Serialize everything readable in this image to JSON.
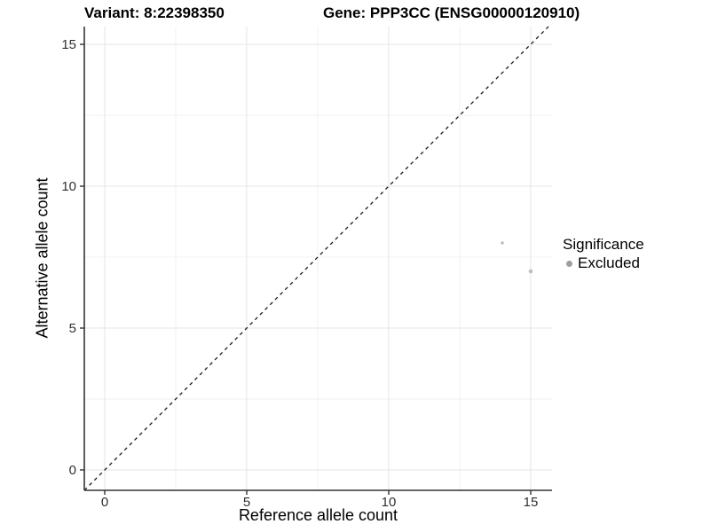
{
  "chart_data": {
    "type": "scatter",
    "title_left": "Variant: 8:22398350",
    "title_right": "Gene: PPP3CC (ENSG00000120910)",
    "xlabel": "Reference allele count",
    "ylabel": "Alternative allele count",
    "xlim": [
      -0.72,
      15.75
    ],
    "ylim": [
      -0.72,
      15.63
    ],
    "x_ticks": [
      0,
      5,
      10,
      15
    ],
    "y_ticks": [
      0,
      5,
      10,
      15
    ],
    "x_tick_labels": [
      "0",
      "5",
      "10",
      "15"
    ],
    "y_tick_labels": [
      "0",
      "5",
      "10",
      "15"
    ],
    "minor_ticks": [
      2.5,
      7.5,
      12.5
    ],
    "grid": true,
    "identity_line": {
      "show": true,
      "dashed": true,
      "equation": "y = x"
    },
    "points": [
      {
        "x": 14,
        "y": 8,
        "r": 1.8,
        "series": "Excluded"
      },
      {
        "x": 15,
        "y": 7,
        "r": 2.3,
        "series": "Excluded"
      }
    ],
    "legend": {
      "title": "Significance",
      "position": "right",
      "entries": [
        {
          "label": "Excluded",
          "color": "#9e9e9e"
        }
      ]
    },
    "colors": {
      "point": "#bebebe",
      "grid_major": "#e4e4e4",
      "grid_minor": "#f2f2f2",
      "axis_line": "#333333",
      "tick_mark": "#333333",
      "tick_label": "#303030",
      "identity_line": "#1a1a1a"
    }
  }
}
